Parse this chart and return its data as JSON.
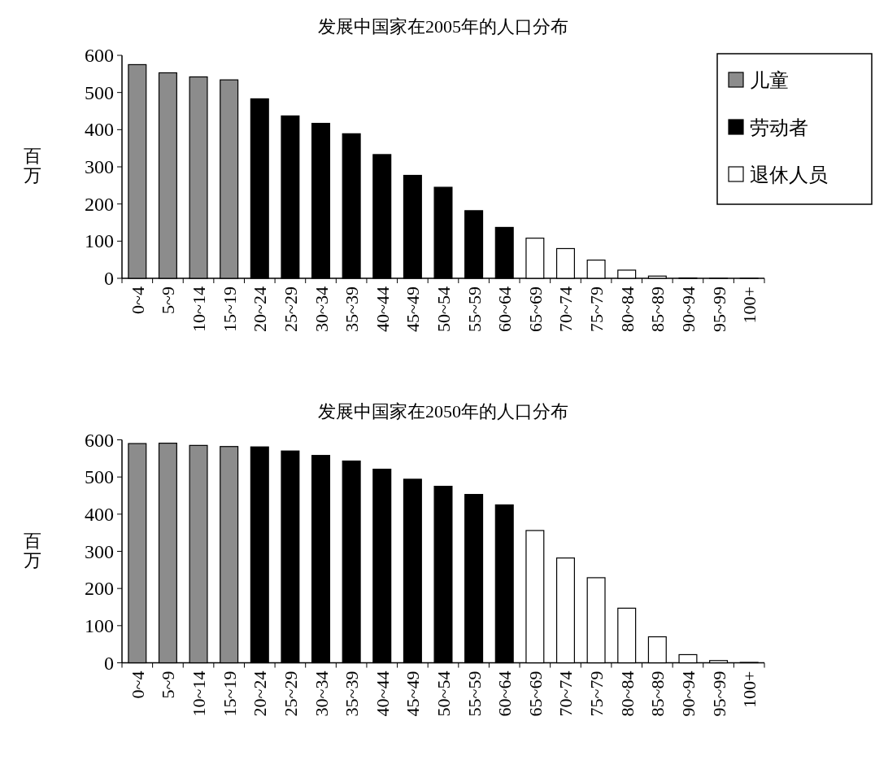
{
  "chart_data": [
    {
      "type": "bar",
      "title": "发展中国家在2005年的人口分布",
      "ylabel": "百万",
      "categories": [
        "0~4",
        "5~9",
        "10~14",
        "15~19",
        "20~24",
        "25~29",
        "30~34",
        "35~39",
        "40~44",
        "45~49",
        "50~54",
        "55~59",
        "60~64",
        "65~69",
        "70~74",
        "75~79",
        "80~84",
        "85~89",
        "90~94",
        "95~99",
        "100+"
      ],
      "series": [
        {
          "name": "儿童",
          "color": "#8c8c8c",
          "values": [
            575,
            553,
            542,
            534,
            null,
            null,
            null,
            null,
            null,
            null,
            null,
            null,
            null,
            null,
            null,
            null,
            null,
            null,
            null,
            null,
            null
          ]
        },
        {
          "name": "劳动者",
          "color": "#000000",
          "values": [
            null,
            null,
            null,
            null,
            483,
            437,
            417,
            389,
            333,
            277,
            245,
            182,
            137,
            null,
            null,
            null,
            null,
            null,
            null,
            null,
            null
          ]
        },
        {
          "name": "退休人员",
          "color": "#ffffff",
          "values": [
            null,
            null,
            null,
            null,
            null,
            null,
            null,
            null,
            null,
            null,
            null,
            null,
            null,
            108,
            80,
            49,
            22,
            6,
            1,
            0,
            0
          ]
        }
      ],
      "ylim": [
        0,
        600
      ],
      "yticks": [
        0,
        100,
        200,
        300,
        400,
        500,
        600
      ],
      "legend": "top right"
    },
    {
      "type": "bar",
      "title": "发展中国家在2050年的人口分布",
      "ylabel": "百万",
      "categories": [
        "0~4",
        "5~9",
        "10~14",
        "15~19",
        "20~24",
        "25~29",
        "30~34",
        "35~39",
        "40~44",
        "45~49",
        "50~54",
        "55~59",
        "60~64",
        "65~69",
        "70~74",
        "75~79",
        "80~84",
        "85~89",
        "90~94",
        "95~99",
        "100+"
      ],
      "series": [
        {
          "color": "#8c8c8c",
          "values": [
            590,
            591,
            585,
            582,
            null,
            null,
            null,
            null,
            null,
            null,
            null,
            null,
            null,
            null,
            null,
            null,
            null,
            null,
            null,
            null,
            null
          ]
        },
        {
          "color": "#000000",
          "values": [
            null,
            null,
            null,
            null,
            581,
            570,
            558,
            543,
            521,
            494,
            475,
            453,
            425,
            null,
            null,
            null,
            null,
            null,
            null,
            null,
            null
          ]
        },
        {
          "color": "#ffffff",
          "values": [
            null,
            null,
            null,
            null,
            null,
            null,
            null,
            null,
            null,
            null,
            null,
            null,
            null,
            356,
            282,
            229,
            147,
            70,
            22,
            6,
            1
          ]
        }
      ],
      "ylim": [
        0,
        600
      ],
      "yticks": [
        0,
        100,
        200,
        300,
        400,
        500,
        600
      ]
    }
  ]
}
